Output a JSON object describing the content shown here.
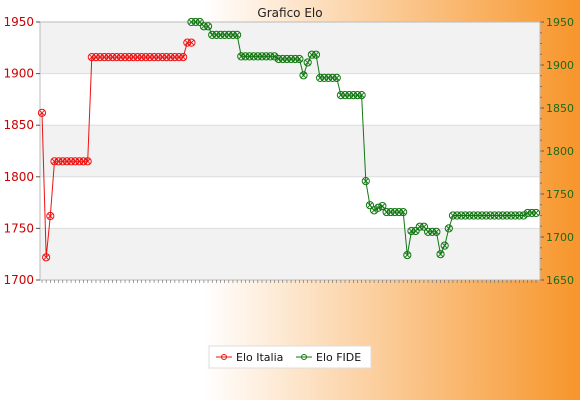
{
  "colors": {
    "bg_left": "#ffffff",
    "bg_right": "#f7952a",
    "plot_bg": "#ffffff",
    "band": "#f2f2f2",
    "grid": "#dddddd",
    "axis_left_text": "#cc0000",
    "axis_right_text": "#1a6b1a",
    "italia": "#ee1111",
    "fide": "#117711"
  },
  "chart_data": {
    "type": "line",
    "title": "Grafico Elo",
    "grid": true,
    "legend_position": "bottom-center",
    "x_tick_labels_note": "",
    "y_left": {
      "min": 1700,
      "max": 1950,
      "ticks": [
        1700,
        1750,
        1800,
        1850,
        1900,
        1950
      ]
    },
    "y_right": {
      "min": 1650,
      "max": 1950,
      "ticks": [
        1650,
        1700,
        1750,
        1800,
        1850,
        1900,
        1950
      ]
    },
    "x_count": 120,
    "series": [
      {
        "name": "Elo Italia",
        "axis": "left",
        "points": [
          [
            0,
            1862
          ],
          [
            1,
            1722
          ],
          [
            2,
            1762
          ],
          [
            3,
            1815
          ],
          [
            4,
            1815
          ],
          [
            5,
            1815
          ],
          [
            6,
            1815
          ],
          [
            7,
            1815
          ],
          [
            8,
            1815
          ],
          [
            9,
            1815
          ],
          [
            10,
            1815
          ],
          [
            11,
            1815
          ],
          [
            12,
            1916
          ],
          [
            13,
            1916
          ],
          [
            14,
            1916
          ],
          [
            15,
            1916
          ],
          [
            16,
            1916
          ],
          [
            17,
            1916
          ],
          [
            18,
            1916
          ],
          [
            19,
            1916
          ],
          [
            20,
            1916
          ],
          [
            21,
            1916
          ],
          [
            22,
            1916
          ],
          [
            23,
            1916
          ],
          [
            24,
            1916
          ],
          [
            25,
            1916
          ],
          [
            26,
            1916
          ],
          [
            27,
            1916
          ],
          [
            28,
            1916
          ],
          [
            29,
            1916
          ],
          [
            30,
            1916
          ],
          [
            31,
            1916
          ],
          [
            32,
            1916
          ],
          [
            33,
            1916
          ],
          [
            34,
            1916
          ],
          [
            35,
            1930
          ],
          [
            36,
            1930
          ]
        ]
      },
      {
        "name": "Elo FIDE",
        "axis": "right",
        "points": [
          [
            36,
            1950
          ],
          [
            37,
            1950
          ],
          [
            38,
            1950
          ],
          [
            39,
            1945
          ],
          [
            40,
            1945
          ],
          [
            41,
            1935
          ],
          [
            42,
            1935
          ],
          [
            43,
            1935
          ],
          [
            44,
            1935
          ],
          [
            45,
            1935
          ],
          [
            46,
            1935
          ],
          [
            47,
            1935
          ],
          [
            48,
            1910
          ],
          [
            49,
            1910
          ],
          [
            50,
            1910
          ],
          [
            51,
            1910
          ],
          [
            52,
            1910
          ],
          [
            53,
            1910
          ],
          [
            54,
            1910
          ],
          [
            55,
            1910
          ],
          [
            56,
            1910
          ],
          [
            57,
            1907
          ],
          [
            58,
            1907
          ],
          [
            59,
            1907
          ],
          [
            60,
            1907
          ],
          [
            61,
            1907
          ],
          [
            62,
            1907
          ],
          [
            63,
            1888
          ],
          [
            64,
            1903
          ],
          [
            65,
            1912
          ],
          [
            66,
            1912
          ],
          [
            67,
            1885
          ],
          [
            68,
            1885
          ],
          [
            69,
            1885
          ],
          [
            70,
            1885
          ],
          [
            71,
            1885
          ],
          [
            72,
            1865
          ],
          [
            73,
            1865
          ],
          [
            74,
            1865
          ],
          [
            75,
            1865
          ],
          [
            76,
            1865
          ],
          [
            77,
            1865
          ],
          [
            78,
            1765
          ],
          [
            79,
            1737
          ],
          [
            80,
            1731
          ],
          [
            81,
            1734
          ],
          [
            82,
            1736
          ],
          [
            83,
            1729
          ],
          [
            84,
            1729
          ],
          [
            85,
            1729
          ],
          [
            86,
            1729
          ],
          [
            87,
            1729
          ],
          [
            88,
            1679
          ],
          [
            89,
            1707
          ],
          [
            90,
            1707
          ],
          [
            91,
            1712
          ],
          [
            92,
            1712
          ],
          [
            93,
            1706
          ],
          [
            94,
            1706
          ],
          [
            95,
            1706
          ],
          [
            96,
            1680
          ],
          [
            97,
            1690
          ],
          [
            98,
            1710
          ],
          [
            99,
            1725
          ],
          [
            100,
            1725
          ],
          [
            101,
            1725
          ],
          [
            102,
            1725
          ],
          [
            103,
            1725
          ],
          [
            104,
            1725
          ],
          [
            105,
            1725
          ],
          [
            106,
            1725
          ],
          [
            107,
            1725
          ],
          [
            108,
            1725
          ],
          [
            109,
            1725
          ],
          [
            110,
            1725
          ],
          [
            111,
            1725
          ],
          [
            112,
            1725
          ],
          [
            113,
            1725
          ],
          [
            114,
            1725
          ],
          [
            115,
            1725
          ],
          [
            116,
            1725
          ],
          [
            117,
            1728
          ],
          [
            118,
            1728
          ],
          [
            119,
            1728
          ]
        ]
      }
    ]
  }
}
